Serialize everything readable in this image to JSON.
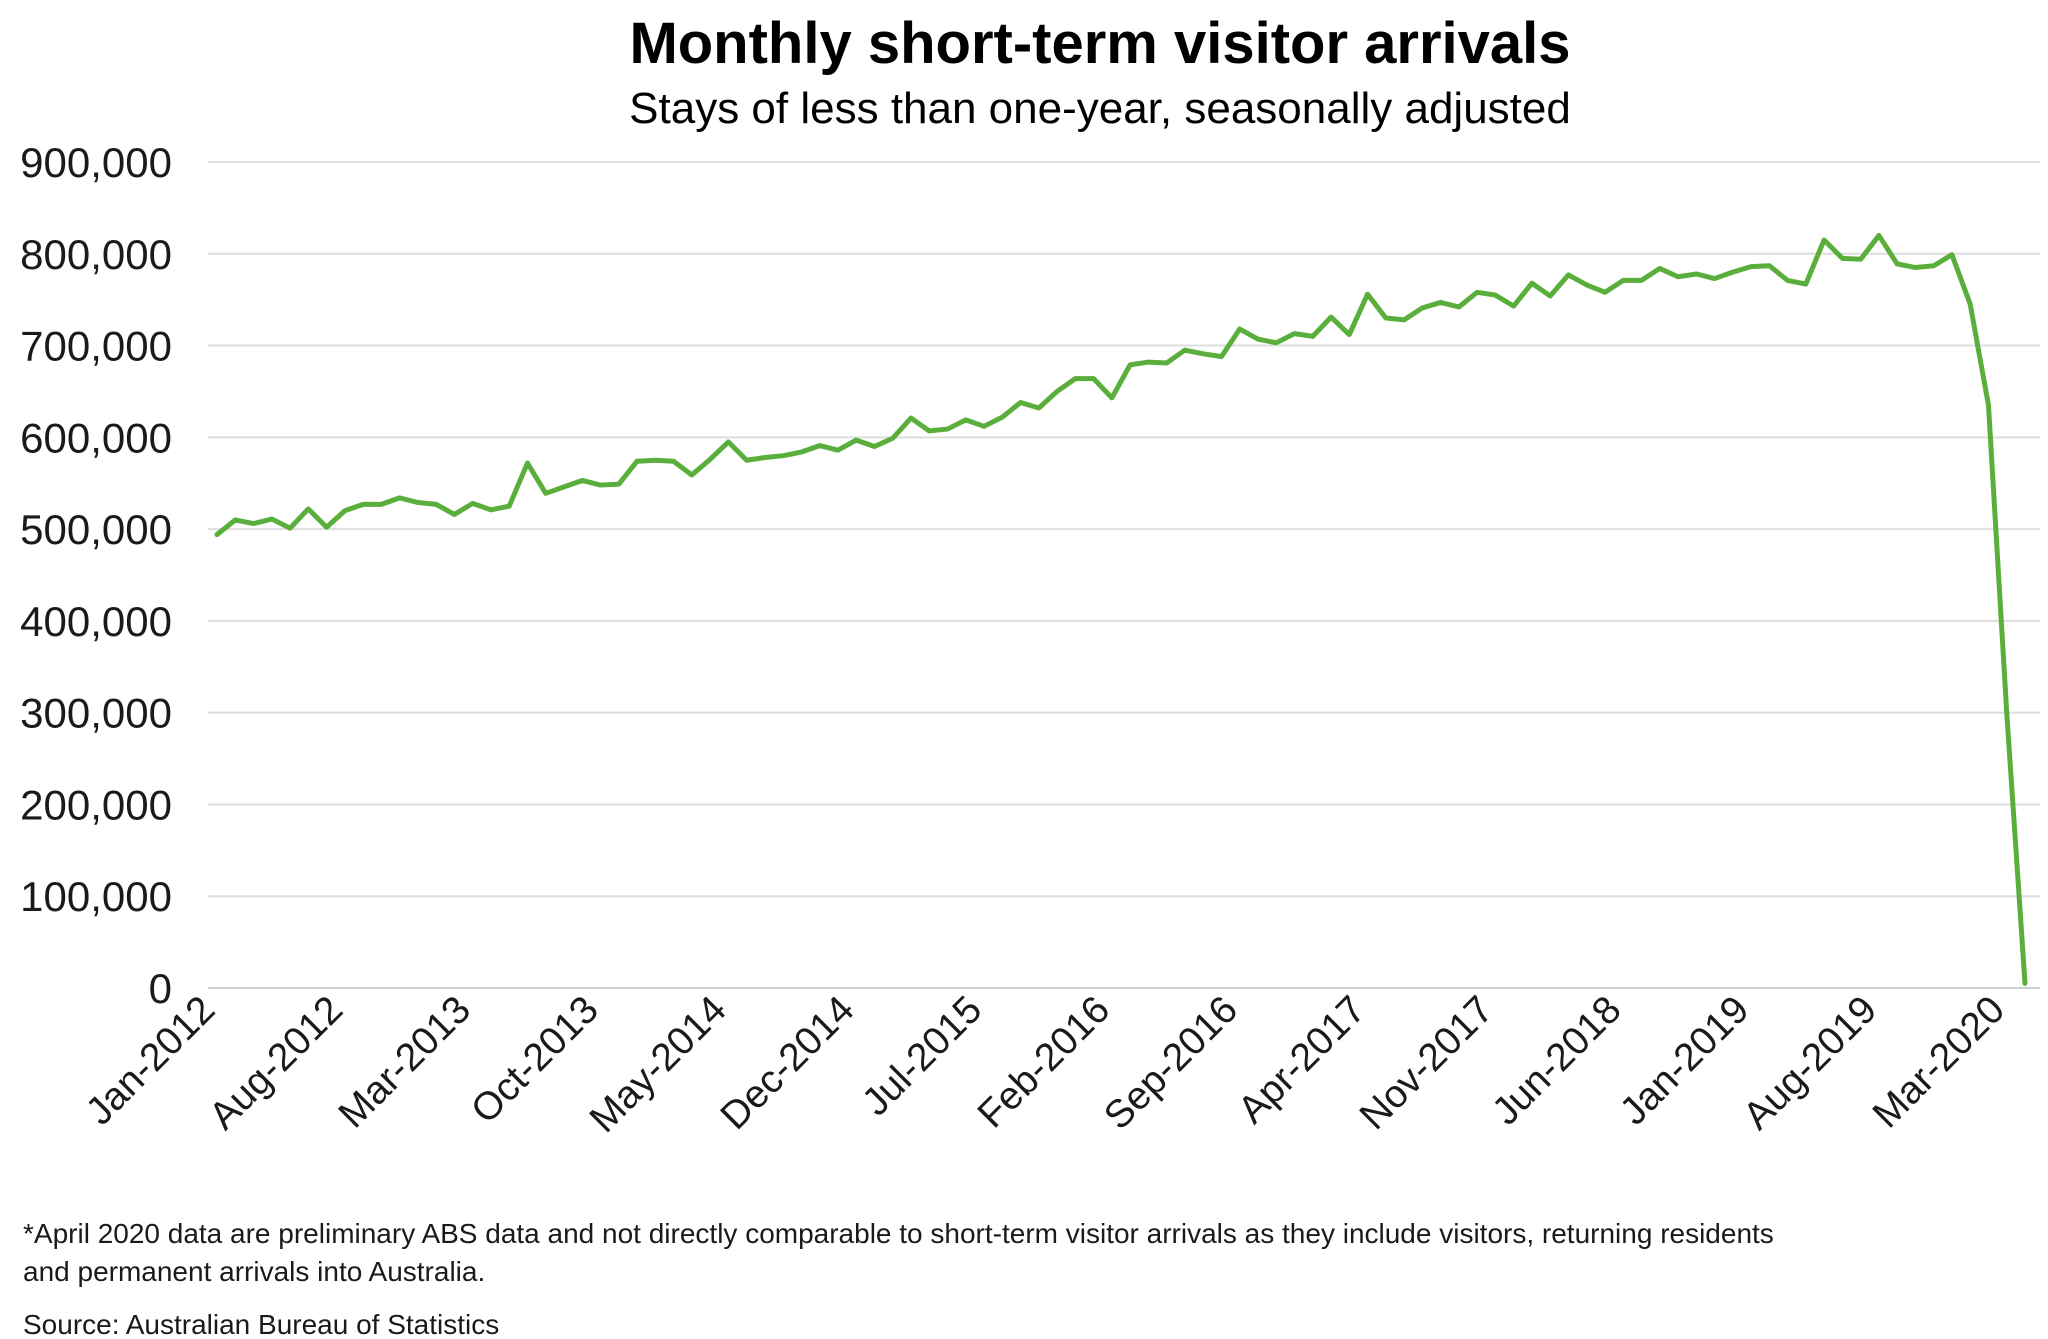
{
  "chart_data": {
    "type": "line",
    "title": "Monthly short-term visitor arrivals",
    "subtitle": "Stays of less than one-year, seasonally adjusted",
    "xlabel": "",
    "ylabel": "",
    "ylim": [
      0,
      900000
    ],
    "y_ticks": [
      0,
      100000,
      200000,
      300000,
      400000,
      500000,
      600000,
      700000,
      800000,
      900000
    ],
    "y_tick_labels": [
      "0",
      "100,000",
      "200,000",
      "300,000",
      "400,000",
      "500,000",
      "600,000",
      "700,000",
      "800,000",
      "900,000"
    ],
    "x_tick_labels": [
      "Jan-2012",
      "Aug-2012",
      "Mar-2013",
      "Oct-2013",
      "May-2014",
      "Dec-2014",
      "Jul-2015",
      "Feb-2016",
      "Sep-2016",
      "Apr-2017",
      "Nov-2017",
      "Jun-2018",
      "Jan-2019",
      "Aug-2019",
      "Mar-2020"
    ],
    "x_tick_every_months": 7,
    "grid": true,
    "legend": "none",
    "line_color": "#5aaf3c",
    "x_start": "Jan-2012",
    "x_end": "Apr-2020",
    "series": [
      {
        "values": [
          494000,
          510000,
          506000,
          511000,
          501000,
          522000,
          502000,
          520000,
          527000,
          527000,
          534000,
          529000,
          527000,
          516000,
          528000,
          521000,
          525000,
          572000,
          539000,
          546000,
          553000,
          548000,
          549000,
          574000,
          575000,
          574000,
          559000,
          576000,
          595000,
          575000,
          578000,
          580000,
          584000,
          591000,
          586000,
          597000,
          590000,
          599000,
          621000,
          607000,
          609000,
          619000,
          612000,
          622000,
          638000,
          632000,
          650000,
          664000,
          664000,
          643000,
          679000,
          682000,
          681000,
          695000,
          691000,
          688000,
          718000,
          707000,
          703000,
          713000,
          710000,
          731000,
          712000,
          756000,
          730000,
          728000,
          741000,
          747000,
          742000,
          758000,
          755000,
          743000,
          768000,
          754000,
          777000,
          766000,
          758000,
          771000,
          771000,
          784000,
          775000,
          778000,
          773000,
          780000,
          786000,
          787000,
          771000,
          767000,
          815000,
          795000,
          794000,
          820000,
          789000,
          785000,
          787000,
          799000,
          745000,
          635000,
          300000,
          5000
        ]
      }
    ]
  },
  "footnote": {
    "line1": "*April 2020 data are preliminary ABS data and not directly comparable to short-term visitor arrivals as they include visitors, returning residents",
    "line2": "and permanent arrivals into Australia.",
    "source": "Source: Australian Bureau of Statistics"
  }
}
